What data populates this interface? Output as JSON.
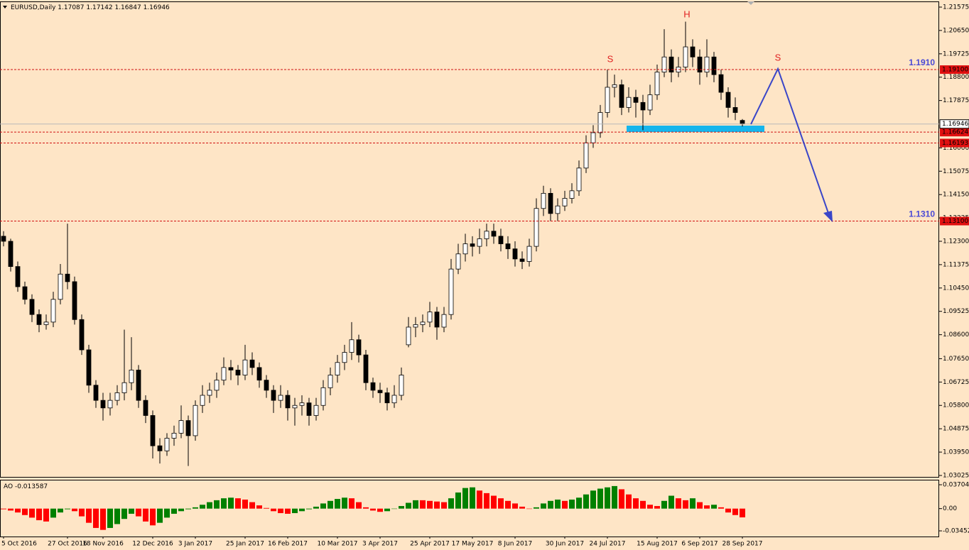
{
  "chart_data": {
    "type": "candlestick",
    "symbol": "EURUSD,Daily",
    "candles": [
      [
        1.125,
        1.127,
        1.121,
        1.123
      ],
      [
        1.123,
        1.124,
        1.111,
        1.113
      ],
      [
        1.113,
        1.115,
        1.103,
        1.105
      ],
      [
        1.105,
        1.107,
        1.098,
        1.1
      ],
      [
        1.1,
        1.102,
        1.091,
        1.094
      ],
      [
        1.094,
        1.096,
        1.087,
        1.09
      ],
      [
        1.09,
        1.094,
        1.088,
        1.091
      ],
      [
        1.091,
        1.103,
        1.089,
        1.1
      ],
      [
        1.1,
        1.114,
        1.098,
        1.11
      ],
      [
        1.11,
        1.13,
        1.104,
        1.107
      ],
      [
        1.107,
        1.109,
        1.09,
        1.092
      ],
      [
        1.092,
        1.094,
        1.078,
        1.08
      ],
      [
        1.08,
        1.082,
        1.063,
        1.066
      ],
      [
        1.066,
        1.068,
        1.057,
        1.06
      ],
      [
        1.06,
        1.063,
        1.052,
        1.057
      ],
      [
        1.057,
        1.063,
        1.054,
        1.06
      ],
      [
        1.06,
        1.066,
        1.058,
        1.063
      ],
      [
        1.063,
        1.088,
        1.06,
        1.067
      ],
      [
        1.067,
        1.085,
        1.064,
        1.072
      ],
      [
        1.072,
        1.074,
        1.057,
        1.06
      ],
      [
        1.06,
        1.062,
        1.051,
        1.054
      ],
      [
        1.054,
        1.056,
        1.037,
        1.042
      ],
      [
        1.042,
        1.045,
        1.035,
        1.04
      ],
      [
        1.04,
        1.047,
        1.038,
        1.045
      ],
      [
        1.045,
        1.05,
        1.042,
        1.047
      ],
      [
        1.047,
        1.058,
        1.045,
        1.052
      ],
      [
        1.052,
        1.054,
        1.034,
        1.046
      ],
      [
        1.046,
        1.06,
        1.044,
        1.058
      ],
      [
        1.058,
        1.066,
        1.055,
        1.062
      ],
      [
        1.062,
        1.067,
        1.059,
        1.064
      ],
      [
        1.064,
        1.071,
        1.061,
        1.068
      ],
      [
        1.068,
        1.077,
        1.066,
        1.073
      ],
      [
        1.073,
        1.076,
        1.068,
        1.072
      ],
      [
        1.072,
        1.074,
        1.066,
        1.07
      ],
      [
        1.07,
        1.082,
        1.068,
        1.076
      ],
      [
        1.076,
        1.079,
        1.07,
        1.073
      ],
      [
        1.073,
        1.075,
        1.065,
        1.068
      ],
      [
        1.068,
        1.07,
        1.061,
        1.064
      ],
      [
        1.064,
        1.066,
        1.055,
        1.06
      ],
      [
        1.06,
        1.066,
        1.057,
        1.062
      ],
      [
        1.062,
        1.064,
        1.052,
        1.057
      ],
      [
        1.057,
        1.061,
        1.05,
        1.058
      ],
      [
        1.058,
        1.062,
        1.054,
        1.059
      ],
      [
        1.059,
        1.061,
        1.05,
        1.054
      ],
      [
        1.054,
        1.061,
        1.052,
        1.058
      ],
      [
        1.058,
        1.068,
        1.056,
        1.065
      ],
      [
        1.065,
        1.073,
        1.062,
        1.07
      ],
      [
        1.07,
        1.078,
        1.067,
        1.075
      ],
      [
        1.075,
        1.082,
        1.072,
        1.079
      ],
      [
        1.079,
        1.091,
        1.076,
        1.084
      ],
      [
        1.084,
        1.086,
        1.075,
        1.078
      ],
      [
        1.078,
        1.08,
        1.064,
        1.067
      ],
      [
        1.067,
        1.069,
        1.061,
        1.064
      ],
      [
        1.064,
        1.067,
        1.059,
        1.063
      ],
      [
        1.063,
        1.065,
        1.056,
        1.059
      ],
      [
        1.059,
        1.066,
        1.057,
        1.062
      ],
      [
        1.062,
        1.073,
        1.06,
        1.07
      ],
      [
        1.082,
        1.093,
        1.081,
        1.089
      ],
      [
        1.089,
        1.093,
        1.085,
        1.09
      ],
      [
        1.09,
        1.094,
        1.087,
        1.091
      ],
      [
        1.091,
        1.099,
        1.089,
        1.095
      ],
      [
        1.095,
        1.097,
        1.084,
        1.089
      ],
      [
        1.089,
        1.097,
        1.087,
        1.094
      ],
      [
        1.094,
        1.116,
        1.092,
        1.112
      ],
      [
        1.112,
        1.122,
        1.11,
        1.118
      ],
      [
        1.118,
        1.126,
        1.115,
        1.122
      ],
      [
        1.122,
        1.125,
        1.117,
        1.121
      ],
      [
        1.121,
        1.128,
        1.118,
        1.124
      ],
      [
        1.124,
        1.13,
        1.121,
        1.127
      ],
      [
        1.127,
        1.13,
        1.122,
        1.125
      ],
      [
        1.125,
        1.128,
        1.119,
        1.122
      ],
      [
        1.122,
        1.125,
        1.116,
        1.12
      ],
      [
        1.12,
        1.123,
        1.113,
        1.116
      ],
      [
        1.116,
        1.119,
        1.112,
        1.115
      ],
      [
        1.115,
        1.124,
        1.113,
        1.121
      ],
      [
        1.121,
        1.14,
        1.119,
        1.136
      ],
      [
        1.136,
        1.145,
        1.133,
        1.142
      ],
      [
        1.142,
        1.144,
        1.131,
        1.134
      ],
      [
        1.134,
        1.14,
        1.131,
        1.137
      ],
      [
        1.137,
        1.143,
        1.135,
        1.14
      ],
      [
        1.14,
        1.146,
        1.138,
        1.143
      ],
      [
        1.143,
        1.155,
        1.141,
        1.152
      ],
      [
        1.152,
        1.165,
        1.15,
        1.162
      ],
      [
        1.162,
        1.169,
        1.16,
        1.166
      ],
      [
        1.166,
        1.177,
        1.164,
        1.174
      ],
      [
        1.174,
        1.191,
        1.172,
        1.184
      ],
      [
        1.184,
        1.189,
        1.18,
        1.185
      ],
      [
        1.185,
        1.187,
        1.173,
        1.176
      ],
      [
        1.176,
        1.184,
        1.174,
        1.18
      ],
      [
        1.18,
        1.183,
        1.172,
        1.178
      ],
      [
        1.178,
        1.181,
        1.167,
        1.175
      ],
      [
        1.175,
        1.185,
        1.173,
        1.181
      ],
      [
        1.181,
        1.193,
        1.179,
        1.19
      ],
      [
        1.19,
        1.207,
        1.188,
        1.196
      ],
      [
        1.196,
        1.199,
        1.186,
        1.19
      ],
      [
        1.19,
        1.196,
        1.188,
        1.192
      ],
      [
        1.192,
        1.21,
        1.19,
        1.2
      ],
      [
        1.2,
        1.203,
        1.192,
        1.196
      ],
      [
        1.196,
        1.199,
        1.185,
        1.19
      ],
      [
        1.19,
        1.203,
        1.188,
        1.196
      ],
      [
        1.196,
        1.198,
        1.186,
        1.189
      ],
      [
        1.189,
        1.191,
        1.179,
        1.182
      ],
      [
        1.182,
        1.184,
        1.172,
        1.176
      ],
      [
        1.176,
        1.18,
        1.171,
        1.174
      ],
      [
        1.17087,
        1.17142,
        1.16847,
        1.16946
      ]
    ],
    "x": [
      "5 Oct 2016",
      null,
      null,
      null,
      null,
      null,
      null,
      null,
      null,
      "27 Oct 2016",
      null,
      null,
      null,
      null,
      "18 Nov 2016",
      null,
      null,
      null,
      null,
      null,
      null,
      "12 Dec 2016",
      null,
      null,
      null,
      null,
      null,
      "3 Jan 2017",
      null,
      null,
      null,
      null,
      null,
      null,
      "25 Jan 2017",
      null,
      null,
      null,
      null,
      null,
      "16 Feb 2017",
      null,
      null,
      null,
      null,
      null,
      null,
      "10 Mar 2017",
      null,
      null,
      null,
      null,
      null,
      "3 Apr 2017",
      null,
      null,
      null,
      null,
      null,
      null,
      "25 Apr 2017",
      null,
      null,
      null,
      null,
      null,
      "17 May 2017",
      null,
      null,
      null,
      null,
      null,
      "8 Jun 2017",
      null,
      null,
      null,
      null,
      null,
      null,
      "30 Jun 2017",
      null,
      null,
      null,
      null,
      null,
      "24 Jul 2017",
      null,
      null,
      null,
      null,
      null,
      null,
      "15 Aug 2017",
      null,
      null,
      null,
      null,
      null,
      "6 Sep 2017",
      null,
      null,
      null,
      null,
      null,
      "28 Sep 2017"
    ],
    "ylim": [
      1.0294,
      1.218
    ],
    "yticks": [
      1.21575,
      {
        "value": 1.2065,
        "label": "1.20650"
      },
      1.19725,
      {
        "value": 1.188,
        "label": "1.18800"
      },
      1.17875,
      {
        "value": 1.16,
        "label": "1.16000"
      },
      1.15075,
      {
        "value": 1.1415,
        "label": "1.14150"
      },
      1.13225,
      {
        "value": 1.123,
        "label": "1.12300"
      },
      1.11375,
      {
        "value": 1.1045,
        "label": "1.10450"
      },
      1.09525,
      {
        "value": 1.086,
        "label": "1.08600"
      },
      {
        "value": 1.0765,
        "label": "1.07650"
      },
      1.06725,
      {
        "value": 1.058,
        "label": "1.05800"
      },
      1.04875,
      {
        "value": 1.0395,
        "label": "1.03950"
      },
      1.03025
    ],
    "up_color": "#ffffff",
    "down_color": "#000000",
    "levels": [
      {
        "value": 1.191,
        "label": "1.19100",
        "annotation": "1.1910"
      },
      {
        "value": 1.16624,
        "label": "1.16624"
      },
      {
        "value": 1.16193,
        "label": "1.16193"
      },
      {
        "value": 1.131,
        "label": "1.13100",
        "annotation": "1.1310"
      }
    ],
    "pattern_labels": [
      "S",
      "H",
      "S"
    ],
    "indicator": {
      "type": "histogram",
      "name": "AO",
      "values": [
        -0.001,
        -0.003,
        -0.006,
        -0.01,
        -0.014,
        -0.018,
        -0.02,
        -0.014,
        -0.006,
        -0.001,
        -0.004,
        -0.012,
        -0.022,
        -0.03,
        -0.033,
        -0.03,
        -0.024,
        -0.016,
        -0.008,
        -0.012,
        -0.02,
        -0.026,
        -0.022,
        -0.014,
        -0.008,
        -0.004,
        -0.001,
        0.002,
        0.006,
        0.01,
        0.013,
        0.016,
        0.017,
        0.016,
        0.014,
        0.01,
        0.005,
        0.001,
        -0.004,
        -0.007,
        -0.008,
        -0.007,
        -0.004,
        -0.001,
        0.003,
        0.008,
        0.012,
        0.015,
        0.017,
        0.016,
        0.01,
        0.002,
        -0.003,
        -0.005,
        -0.004,
        0.0,
        0.004,
        0.009,
        0.013,
        0.013,
        0.012,
        0.011,
        0.01,
        0.016,
        0.025,
        0.032,
        0.033,
        0.028,
        0.024,
        0.02,
        0.016,
        0.012,
        0.008,
        0.003,
        0.0,
        0.002,
        0.008,
        0.012,
        0.014,
        0.012,
        0.014,
        0.017,
        0.022,
        0.028,
        0.031,
        0.033,
        0.035,
        0.03,
        0.022,
        0.016,
        0.012,
        0.006,
        0.004,
        0.012,
        0.02,
        0.016,
        0.013,
        0.016,
        0.01,
        0.005,
        0.006,
        0.002,
        -0.006,
        -0.01,
        -0.013587
      ],
      "ylim": [
        -0.0433,
        0.0448
      ],
      "yticks": [
        0.037047,
        {
          "value": 0,
          "label": "0.00"
        },
        -0.034526
      ],
      "up_color": "#008000",
      "down_color": "#ff0000"
    }
  }
}
